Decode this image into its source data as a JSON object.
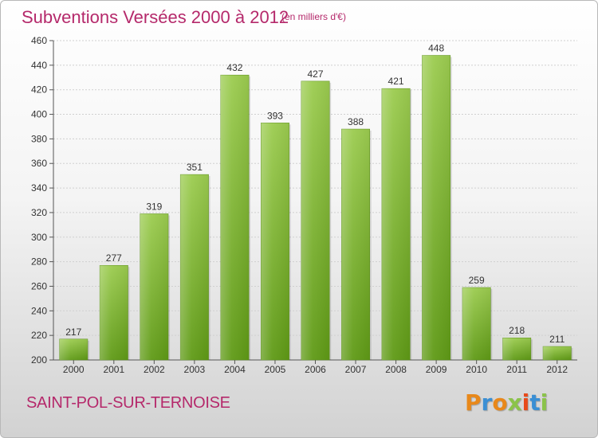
{
  "header": {
    "title": "Subventions Versées 2000 à 2012",
    "unit_note": "(en milliers d'€)"
  },
  "footer": {
    "commune": "SAINT-POL-SUR-TERNOISE",
    "brand_letters": [
      "P",
      "r",
      "o",
      "x",
      "i",
      "t",
      "i"
    ],
    "brand_colors": [
      "#e8881a",
      "#3a8fd4",
      "#e8881a",
      "#8bc34a",
      "#e84a1a",
      "#3a8fd4",
      "#8bc34a"
    ]
  },
  "chart_data": {
    "type": "bar",
    "title": "Subventions Versées 2000 à 2012",
    "subtitle": "(en milliers d'€)",
    "xlabel": "",
    "ylabel": "",
    "categories": [
      "2000",
      "2001",
      "2002",
      "2003",
      "2004",
      "2005",
      "2006",
      "2007",
      "2008",
      "2009",
      "2010",
      "2011",
      "2012"
    ],
    "values": [
      217,
      277,
      319,
      351,
      432,
      393,
      427,
      388,
      421,
      448,
      259,
      218,
      211
    ],
    "ylim": [
      200,
      460
    ],
    "yticks": [
      200,
      220,
      240,
      260,
      280,
      300,
      320,
      340,
      360,
      380,
      400,
      420,
      440,
      460
    ],
    "grid": true,
    "bar_color": "#7ab92e",
    "title_color": "#b5296b"
  }
}
